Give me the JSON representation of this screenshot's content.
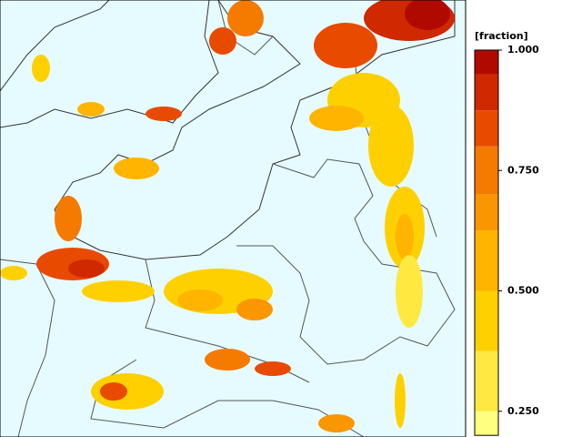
{
  "colorbar": {
    "label": "[fraction]",
    "range": [
      0.2,
      1
    ],
    "ticks": [
      {
        "value": 1,
        "label": "1.000"
      },
      {
        "value": 0.75,
        "label": "0.750"
      },
      {
        "value": 0.5,
        "label": "0.500"
      },
      {
        "value": 0.25,
        "label": "0.250"
      }
    ],
    "bands": [
      {
        "from": 0.95,
        "to": 1,
        "color": "#b00a00"
      },
      {
        "from": 0.875,
        "to": 0.95,
        "color": "#d02800"
      },
      {
        "from": 0.8,
        "to": 0.875,
        "color": "#e84a00"
      },
      {
        "from": 0.7,
        "to": 0.8,
        "color": "#f57a00"
      },
      {
        "from": 0.625,
        "to": 0.7,
        "color": "#fa9600"
      },
      {
        "from": 0.5,
        "to": 0.625,
        "color": "#ffb400"
      },
      {
        "from": 0.375,
        "to": 0.5,
        "color": "#ffd000"
      },
      {
        "from": 0.25,
        "to": 0.375,
        "color": "#ffe840"
      },
      {
        "from": 0.2,
        "to": 0.25,
        "color": "#ffff80"
      }
    ]
  }
}
